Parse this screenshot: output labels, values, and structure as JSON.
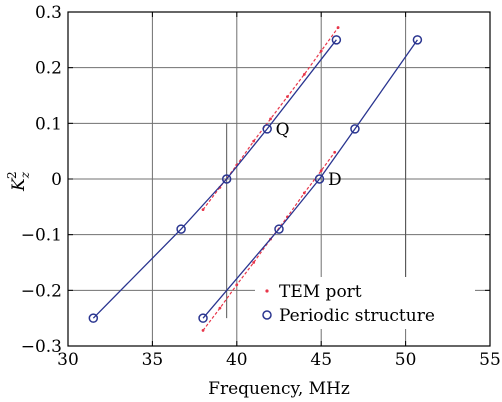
{
  "chart_data": {
    "type": "line",
    "xlabel": "Frequency, MHz",
    "ylabel_main": "K",
    "ylabel_sub": "z",
    "ylabel_sup": "2",
    "xlim": [
      30,
      55
    ],
    "ylim": [
      -0.3,
      0.3
    ],
    "xticks": [
      30,
      35,
      40,
      45,
      50,
      55
    ],
    "yticks": [
      -0.3,
      -0.2,
      -0.1,
      0,
      0.1,
      0.2,
      0.3
    ],
    "xtick_labels": [
      "30",
      "35",
      "40",
      "45",
      "50",
      "55"
    ],
    "ytick_labels": [
      "−0.3",
      "−0.2",
      "−0.1",
      "0",
      "0.1",
      "0.2",
      "0.3"
    ],
    "grid": true,
    "legend_position": "bottom-right",
    "colors": {
      "tem": "#e8364a",
      "periodic": "#2a3590",
      "grid": "#707070"
    },
    "series": [
      {
        "name": "TEM port",
        "marker": "dot",
        "color": "#e8364a",
        "x": [
          38.0,
          39.0,
          40.0,
          41.0,
          42.0,
          43.0,
          44.0,
          45.0,
          46.0
        ],
        "y": [
          -0.055,
          -0.015,
          0.025,
          0.068,
          0.108,
          0.148,
          0.188,
          0.23,
          0.272
        ]
      },
      {
        "name": "TEM port",
        "marker": "dot",
        "color": "#e8364a",
        "x": [
          38.0,
          39.0,
          40.0,
          41.0,
          42.0,
          43.0,
          44.0,
          45.0,
          45.8
        ],
        "y": [
          -0.272,
          -0.232,
          -0.19,
          -0.15,
          -0.108,
          -0.068,
          -0.025,
          0.015,
          0.048
        ]
      },
      {
        "name": "Periodic structure",
        "marker": "circle",
        "color": "#2a3590",
        "x": [
          31.5,
          36.7,
          39.4,
          41.8,
          45.9
        ],
        "y": [
          -0.25,
          -0.09,
          0.0,
          0.09,
          0.25
        ]
      },
      {
        "name": "Periodic structure",
        "marker": "circle",
        "color": "#2a3590",
        "x": [
          38.0,
          42.5,
          44.9,
          47.0,
          50.7
        ],
        "y": [
          -0.25,
          -0.09,
          0.0,
          0.09,
          0.25
        ]
      }
    ],
    "marker_lines": [
      {
        "x": 39.4,
        "y": [
          -0.25,
          0.1
        ]
      },
      {
        "x": 50.0,
        "y": [
          -0.2,
          0.2
        ]
      }
    ],
    "annotations": [
      {
        "text": "Q",
        "x": 42.3,
        "y": 0.09
      },
      {
        "text": "D",
        "x": 45.4,
        "y": 0.0
      }
    ],
    "legend": [
      {
        "label": "TEM port",
        "marker": "dot",
        "color": "#e8364a"
      },
      {
        "label": "Periodic structure",
        "marker": "circle",
        "color": "#2a3590"
      }
    ]
  }
}
